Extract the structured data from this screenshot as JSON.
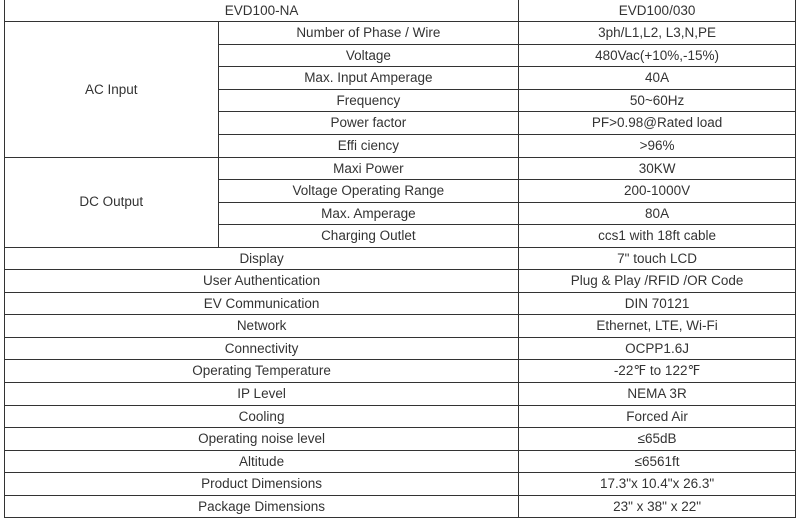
{
  "table": {
    "type": "table",
    "text_color": "#333333",
    "border_color": "#333333",
    "background_color": "#ffffff",
    "font_size_pt": 10,
    "header": {
      "left": "EVD100-NA",
      "right": "EVD100/030"
    },
    "sections": [
      {
        "group": "AC Input",
        "rows": [
          {
            "label": "Number of Phase / Wire",
            "value": "3ph/L1,L2, L3,N,PE"
          },
          {
            "label": "Voltage",
            "value": "480Vac(+10%,-15%)"
          },
          {
            "label": "Max. Input Amperage",
            "value": "40A"
          },
          {
            "label": "Frequency",
            "value": "50~60Hz"
          },
          {
            "label": "Power factor",
            "value": "PF>0.98@Rated load"
          },
          {
            "label": "Effi ciency",
            "value": ">96%"
          }
        ]
      },
      {
        "group": "DC Output",
        "rows": [
          {
            "label": "Maxi Power",
            "value": "30KW"
          },
          {
            "label": "Voltage Operating Range",
            "value": "200-1000V"
          },
          {
            "label": "Max. Amperage",
            "value": "80A"
          },
          {
            "label": "Charging Outlet",
            "value": "ccs1 with 18ft cable"
          }
        ]
      }
    ],
    "flat_rows": [
      {
        "label": "Display",
        "value": "7\" touch LCD"
      },
      {
        "label": "User Authentication",
        "value": "Plug & Play /RFID /OR Code"
      },
      {
        "label": "EV Communication",
        "value": "DIN 70121"
      },
      {
        "label": "Network",
        "value": "Ethernet, LTE, Wi-Fi"
      },
      {
        "label": "Connectivity",
        "value": "OCPP1.6J"
      },
      {
        "label": "Operating Temperature",
        "value": "-22℉ to 122℉"
      },
      {
        "label": "IP Level",
        "value": "NEMA 3R"
      },
      {
        "label": "Cooling",
        "value": "Forced Air"
      },
      {
        "label": "Operating noise level",
        "value": "≤65dB"
      },
      {
        "label": "Altitude",
        "value": "≤6561ft"
      },
      {
        "label": "Product Dimensions",
        "value": "17.3\"x 10.4\"x 26.3\""
      },
      {
        "label": "Package Dimensions",
        "value": "23\" x 38\" x 22\""
      }
    ],
    "column_widths_pct": [
      27,
      38,
      35
    ]
  }
}
